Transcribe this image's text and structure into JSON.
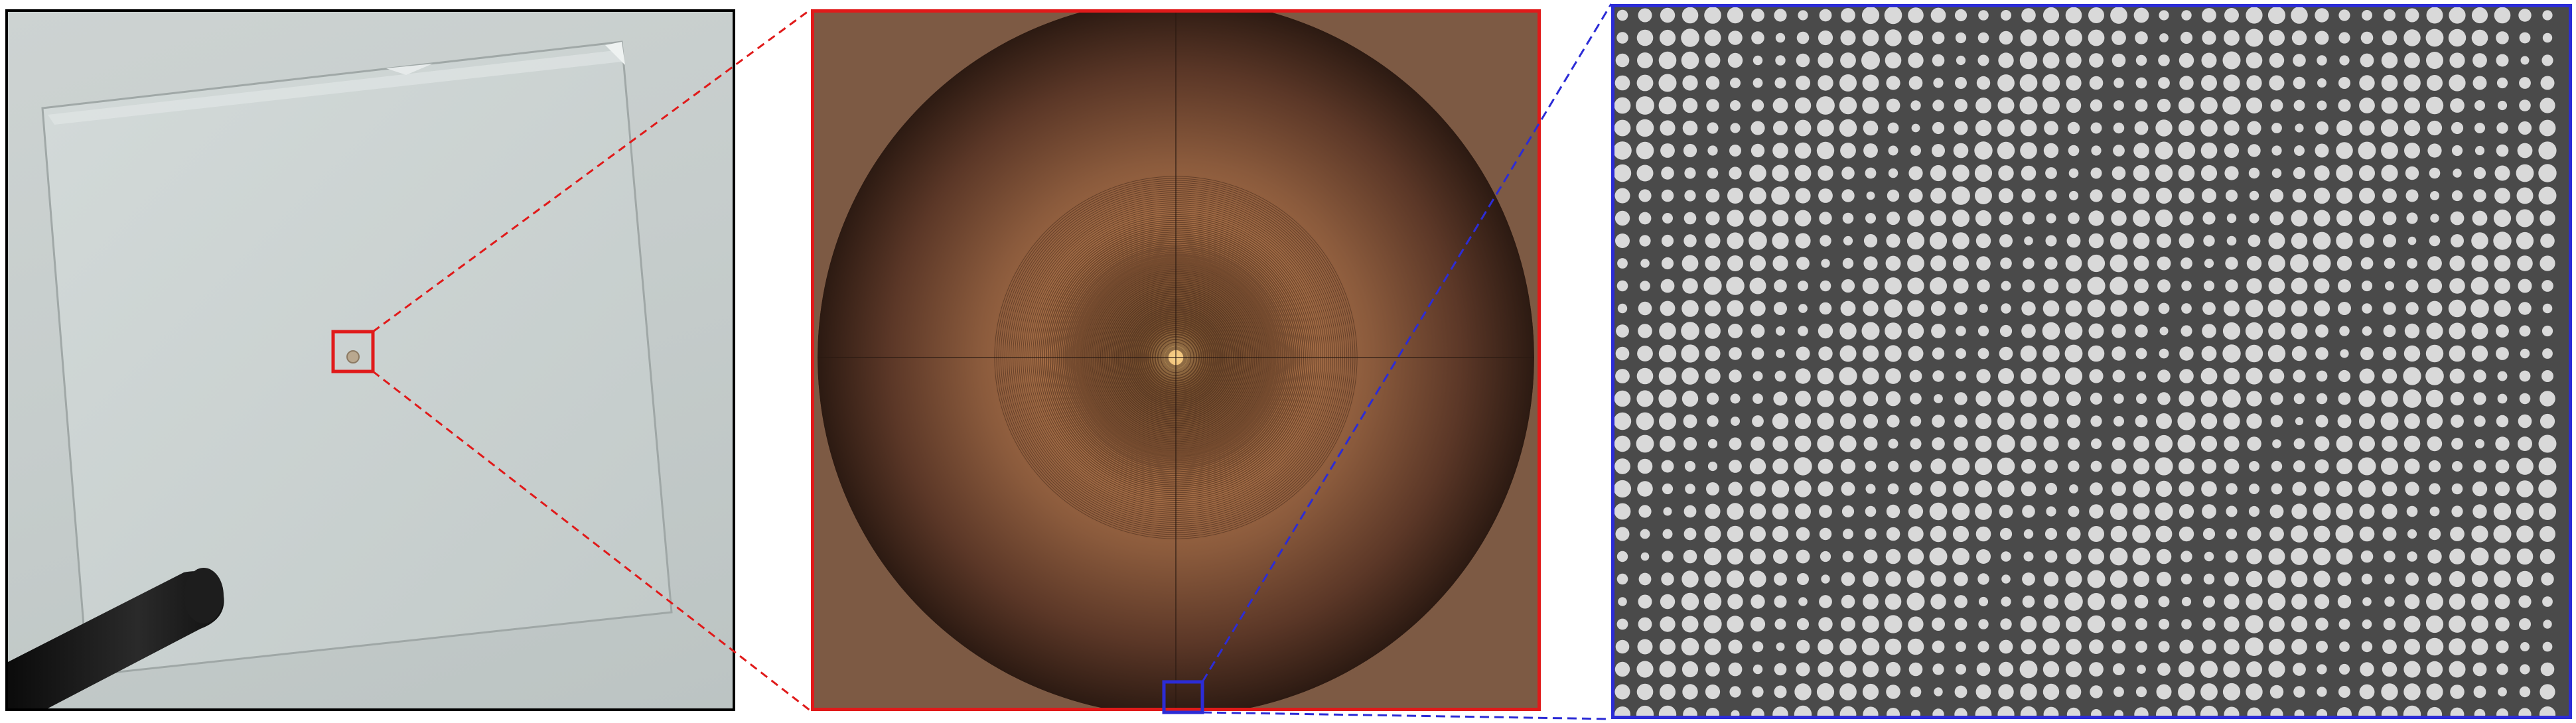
{
  "figure": {
    "panels": [
      {
        "id": "photo",
        "content": "glass-substrate-photo"
      },
      {
        "id": "optical",
        "content": "optical-micrograph-interference-rings"
      },
      {
        "id": "sem",
        "content": "sem-nanopillar-array"
      }
    ],
    "colors": {
      "photo_border": "#000000",
      "zoom_box_red": "#e01a1a",
      "zoom_box_blue": "#2c2cd6",
      "optical_background": "#7d5a44",
      "sem_background": "#4a4a4a",
      "sem_dots": "#d9d9d9"
    },
    "connectors": [
      {
        "from": "photo-zoom-box",
        "to": "panel-optical",
        "style": "dashed",
        "color": "#e01a1a"
      },
      {
        "from": "optical-zoom-box",
        "to": "panel-sem",
        "style": "dashed",
        "color": "#2c2cd6"
      }
    ]
  }
}
